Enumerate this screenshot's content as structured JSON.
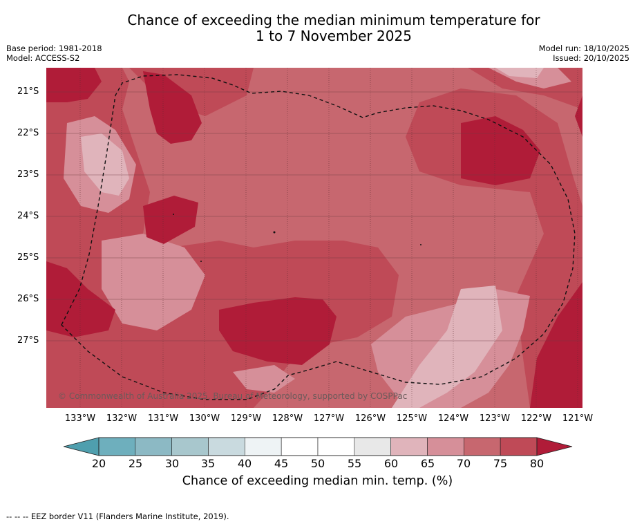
{
  "header": {
    "title_line1": "Chance of exceeding the median minimum temperature for",
    "title_line2": "1 to 7 November 2025",
    "base_period": "Base period: 1981-2018",
    "model": "Model: ACCESS-S2",
    "model_run": "Model run: 18/10/2025",
    "issued": "Issued: 20/10/2025"
  },
  "map": {
    "latitude_labels": [
      "21°S",
      "22°S",
      "23°S",
      "24°S",
      "25°S",
      "26°S",
      "27°S"
    ],
    "longitude_labels": [
      "133°W",
      "132°W",
      "131°W",
      "130°W",
      "129°W",
      "128°W",
      "127°W",
      "126°W",
      "125°W",
      "124°W",
      "123°W",
      "122°W",
      "121°W"
    ],
    "copyright": "© Commonwealth of Australia 2025, Bureau of Meteorology, supported by COSPPac",
    "colors": {
      "band_60_65": "#e0b4bb",
      "band_65_70": "#d68f99",
      "band_70_75": "#c7676f",
      "band_75_80": "#bf4a57",
      "band_80_plus": "#b01c38"
    }
  },
  "colorbar": {
    "ticks": [
      "20",
      "25",
      "30",
      "35",
      "40",
      "45",
      "50",
      "55",
      "60",
      "65",
      "70",
      "75",
      "80"
    ],
    "colors": [
      "#6eafbd",
      "#8cb9c4",
      "#a8c7cd",
      "#c9dadf",
      "#eef3f5",
      "#ffffff",
      "#ffffff",
      "#e8e8e8",
      "#e0b4bb",
      "#d68f99",
      "#c7676f",
      "#bf4a57"
    ],
    "low_arrow_color": "#4f9fae",
    "high_arrow_color": "#b01c38",
    "label": "Chance of exceeding median min. temp. (%)"
  },
  "footer": {
    "legend_text": "--  --  -- EEZ border V11 (Flanders Marine Institute, 2019)."
  }
}
